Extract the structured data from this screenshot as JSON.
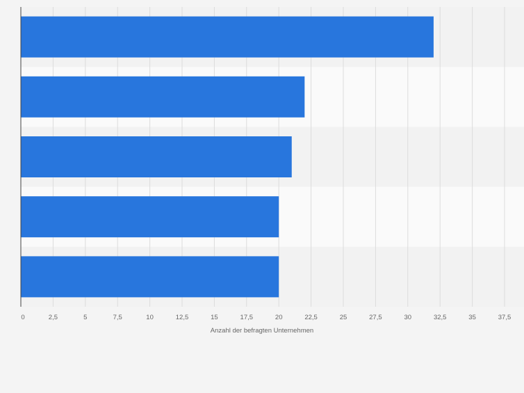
{
  "chart_data": {
    "type": "bar",
    "orientation": "horizontal",
    "categories": [
      "",
      "",
      "",
      "",
      ""
    ],
    "values": [
      32,
      22,
      21,
      20,
      20
    ],
    "xlabel": "Anzahl der befragten Unternehmen",
    "ylabel": "",
    "xlim": [
      0,
      37.5
    ],
    "ticks": [
      "0",
      "2,5",
      "5",
      "7,5",
      "10",
      "12,5",
      "15",
      "17,5",
      "20",
      "22,5",
      "25",
      "27,5",
      "30",
      "32,5",
      "35",
      "37,5"
    ],
    "grid": true,
    "colors": {
      "bar": "#2876dd",
      "background": "#f4f4f4",
      "band_light": "#fafafa",
      "band_dark": "#f2f2f2",
      "grid": "#dcdcdc",
      "axis": "#666666",
      "text": "#666666"
    }
  }
}
